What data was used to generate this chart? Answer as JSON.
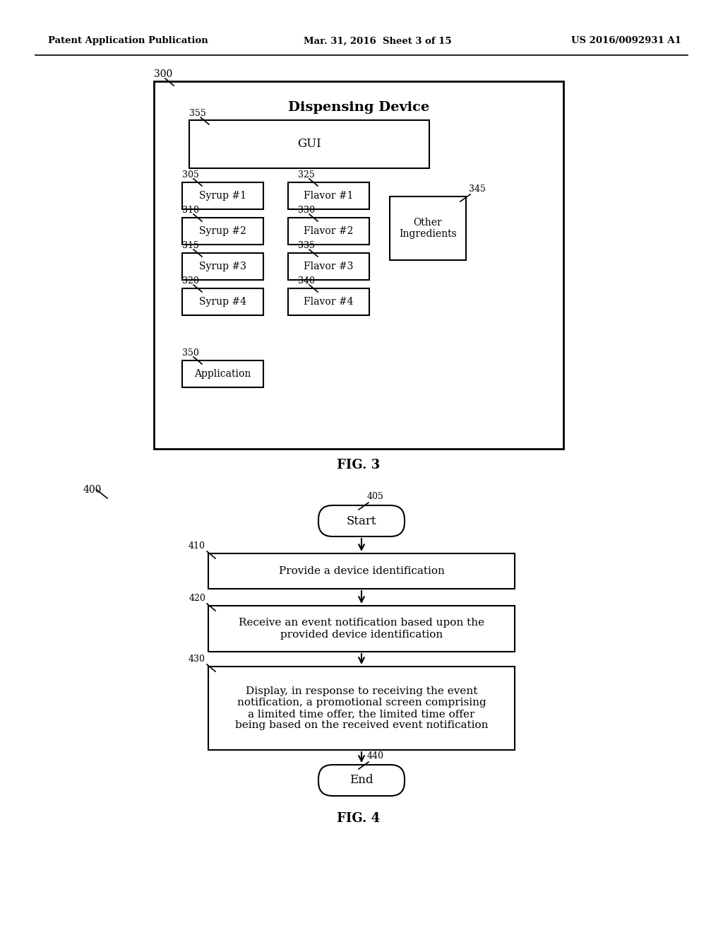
{
  "bg_color": "#ffffff",
  "header_left": "Patent Application Publication",
  "header_mid": "Mar. 31, 2016  Sheet 3 of 15",
  "header_right": "US 2016/0092931 A1",
  "fig3_label": "FIG. 3",
  "fig4_label": "FIG. 4",
  "fig3_title": "Dispensing Device",
  "fig3_ref": "300",
  "gui_label": "GUI",
  "gui_ref": "355",
  "syrup_labels": [
    "Syrup #1",
    "Syrup #2",
    "Syrup #3",
    "Syrup #4"
  ],
  "syrup_refs": [
    "305",
    "310",
    "315",
    "320"
  ],
  "flavor_labels": [
    "Flavor #1",
    "Flavor #2",
    "Flavor #3",
    "Flavor #4"
  ],
  "flavor_refs": [
    "325",
    "330",
    "335",
    "340"
  ],
  "other_label": "Other\nIngredients",
  "other_ref": "345",
  "app_label": "Application",
  "app_ref": "350",
  "flow_ref": "400",
  "start_label": "Start",
  "start_ref": "405",
  "end_label": "End",
  "end_ref": "440",
  "box410_ref": "410",
  "box410_text": "Provide a device identification",
  "box420_ref": "420",
  "box420_text": "Receive an event notification based upon the\nprovided device identification",
  "box430_ref": "430",
  "box430_text": "Display, in response to receiving the event\nnotification, a promotional screen comprising\na limited time offer, the limited time offer\nbeing based on the received event notification"
}
